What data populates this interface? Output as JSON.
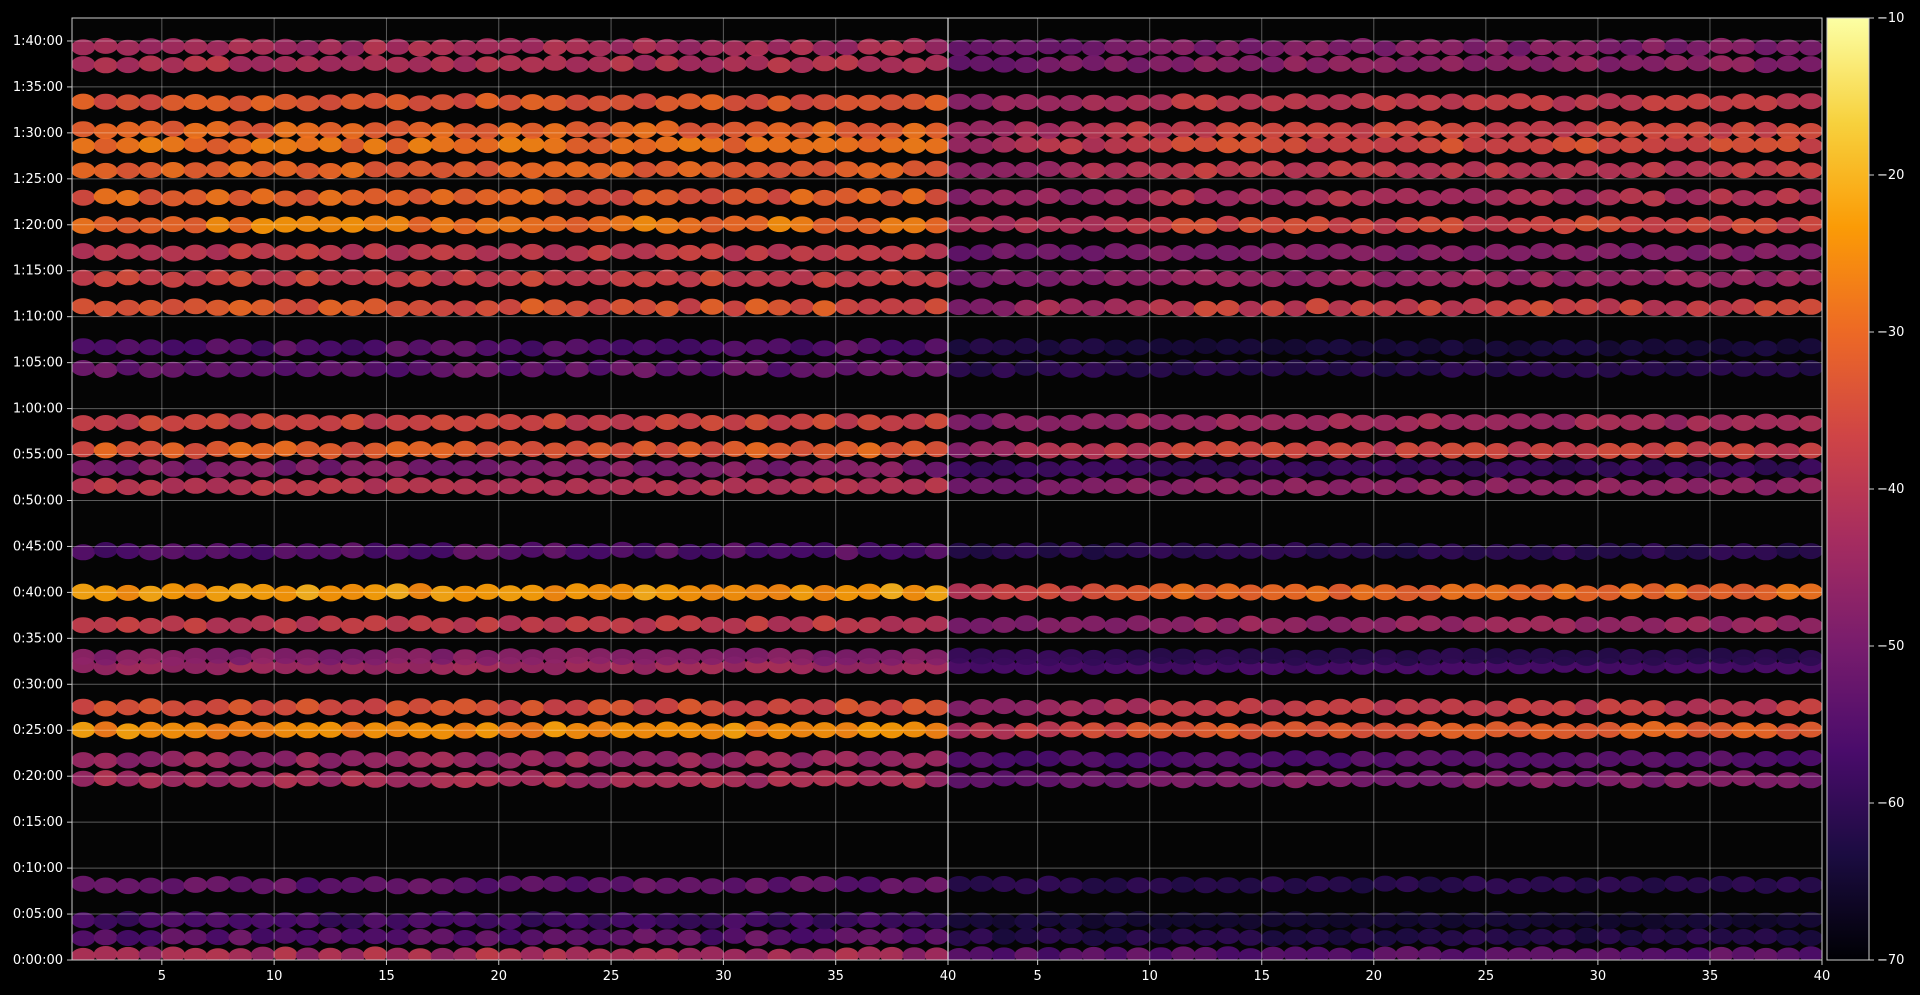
{
  "chart_data": {
    "type": "heatmap",
    "title": "",
    "xlabel": "",
    "ylabel": "",
    "grid": true,
    "panels": [
      {
        "name": "",
        "xlim": [
          1,
          40
        ]
      },
      {
        "name": "",
        "xlim": [
          1,
          40
        ]
      }
    ],
    "x_ticks": [
      "5",
      "10",
      "15",
      "20",
      "25",
      "30",
      "35",
      "40"
    ],
    "y_ticks": [
      "0:00:00",
      "0:05:00",
      "0:10:00",
      "0:15:00",
      "0:20:00",
      "0:25:00",
      "0:30:00",
      "0:35:00",
      "0:40:00",
      "0:45:00",
      "0:50:00",
      "0:55:00",
      "1:00:00",
      "1:05:00",
      "1:10:00",
      "1:15:00",
      "1:20:00",
      "1:25:00",
      "1:30:00",
      "1:35:00",
      "1:40:00"
    ],
    "ylim_seconds": [
      0,
      6150
    ],
    "colorbar": {
      "colormap": "inferno",
      "min": -70,
      "max": -10,
      "ticks": [
        "-10",
        "-20",
        "-30",
        "-40",
        "-50",
        "-60",
        "-70"
      ]
    },
    "colormap_stops": [
      "#000004",
      "#1b0c41",
      "#4a0c6b",
      "#781c6d",
      "#a52c60",
      "#cf4446",
      "#ed6925",
      "#fb9b06",
      "#f7d13d",
      "#fcffa4"
    ],
    "bands": [
      {
        "time_seconds": 30,
        "level": [
          -48,
          -38
        ],
        "panel2_scale": 0.6
      },
      {
        "time_seconds": 150,
        "level": [
          -58,
          -50
        ],
        "panel2_scale": 0.5
      },
      {
        "time_seconds": 260,
        "level": [
          -60,
          -55
        ],
        "panel2_scale": 0.4
      },
      {
        "time_seconds": 490,
        "level": [
          -56,
          -50
        ],
        "panel2_scale": 0.5
      },
      {
        "time_seconds": 1180,
        "level": [
          -46,
          -40
        ],
        "panel2_scale": 0.8
      },
      {
        "time_seconds": 1310,
        "level": [
          -48,
          -42
        ],
        "panel2_scale": 0.6
      },
      {
        "time_seconds": 1500,
        "level": [
          -28,
          -22
        ],
        "panel2_scale": 0.85
      },
      {
        "time_seconds": 1650,
        "level": [
          -38,
          -32
        ],
        "panel2_scale": 0.9
      },
      {
        "time_seconds": 1920,
        "level": [
          -46,
          -42
        ],
        "panel2_scale": 0.5
      },
      {
        "time_seconds": 1980,
        "level": [
          -50,
          -46
        ],
        "panel2_scale": 0.4
      },
      {
        "time_seconds": 2190,
        "level": [
          -42,
          -36
        ],
        "panel2_scale": 0.8
      },
      {
        "time_seconds": 2400,
        "level": [
          -26,
          -20
        ],
        "panel2_scale": 0.85
      },
      {
        "time_seconds": 2670,
        "level": [
          -58,
          -52
        ],
        "panel2_scale": 0.6
      },
      {
        "time_seconds": 3090,
        "level": [
          -42,
          -38
        ],
        "panel2_scale": 0.8
      },
      {
        "time_seconds": 3210,
        "level": [
          -52,
          -46
        ],
        "panel2_scale": 0.5
      },
      {
        "time_seconds": 3330,
        "level": [
          -36,
          -28
        ],
        "panel2_scale": 0.85
      },
      {
        "time_seconds": 3510,
        "level": [
          -40,
          -34
        ],
        "panel2_scale": 0.8
      },
      {
        "time_seconds": 3860,
        "level": [
          -56,
          -50
        ],
        "panel2_scale": 0.5
      },
      {
        "time_seconds": 4000,
        "level": [
          -58,
          -52
        ],
        "panel2_scale": 0.4
      },
      {
        "time_seconds": 4260,
        "level": [
          -38,
          -30
        ],
        "panel2_scale": 0.9
      },
      {
        "time_seconds": 4450,
        "level": [
          -40,
          -34
        ],
        "panel2_scale": 0.75
      },
      {
        "time_seconds": 4620,
        "level": [
          -42,
          -36
        ],
        "panel2_scale": 0.7
      },
      {
        "time_seconds": 4800,
        "level": [
          -32,
          -24
        ],
        "panel2_scale": 0.8
      },
      {
        "time_seconds": 4980,
        "level": [
          -36,
          -28
        ],
        "panel2_scale": 0.75
      },
      {
        "time_seconds": 5160,
        "level": [
          -34,
          -28
        ],
        "panel2_scale": 0.8
      },
      {
        "time_seconds": 5320,
        "level": [
          -32,
          -26
        ],
        "panel2_scale": 0.85
      },
      {
        "time_seconds": 5420,
        "level": [
          -34,
          -28
        ],
        "panel2_scale": 0.85
      },
      {
        "time_seconds": 5600,
        "level": [
          -36,
          -30
        ],
        "panel2_scale": 0.85
      },
      {
        "time_seconds": 5850,
        "level": [
          -44,
          -38
        ],
        "panel2_scale": 0.8
      },
      {
        "time_seconds": 5960,
        "level": [
          -46,
          -40
        ],
        "panel2_scale": 0.8
      }
    ]
  }
}
